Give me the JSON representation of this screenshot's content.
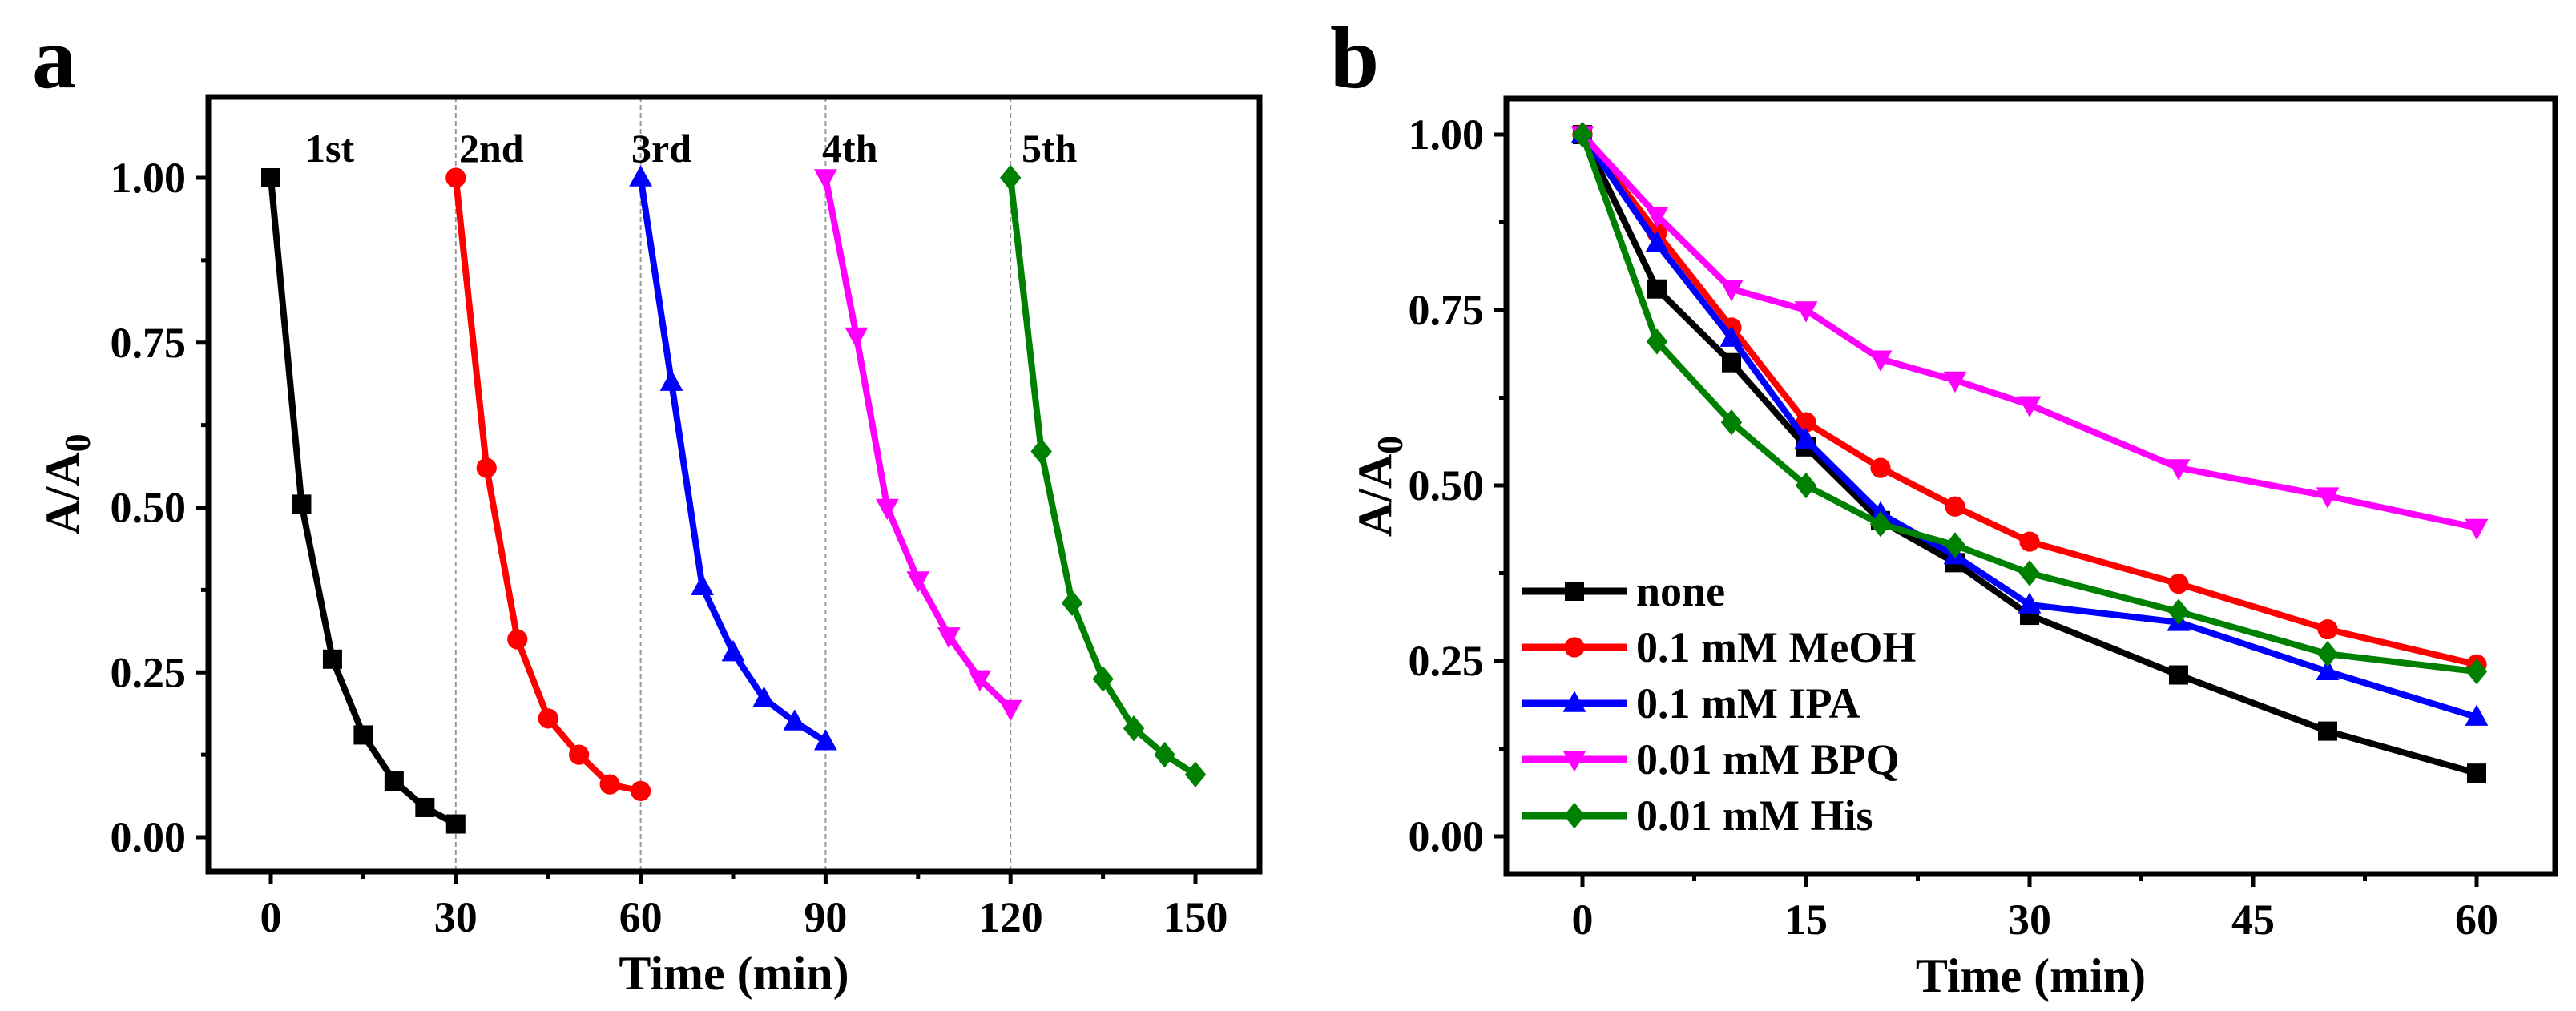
{
  "chart_data": [
    {
      "panel_label": "a",
      "type": "line",
      "xlabel": "Time (min)",
      "ylabel": "A/A0",
      "ylabel_main": "A/A",
      "ylabel_sub": "0",
      "xlim": [
        -10,
        160
      ],
      "ylim": [
        -0.07,
        1.13
      ],
      "xticks": [
        0,
        30,
        60,
        90,
        120,
        150
      ],
      "xtick_labels": [
        "0",
        "30",
        "60",
        "90",
        "120",
        "150"
      ],
      "yticks": [
        0,
        0.25,
        0.5,
        0.75,
        1.0
      ],
      "ytick_labels": [
        "0.00",
        "0.25",
        "0.50",
        "0.75",
        "1.00"
      ],
      "vlines": [
        30,
        60,
        90,
        120
      ],
      "series": [
        {
          "name": "1st",
          "color": "#000000",
          "marker": "square",
          "x": [
            0,
            5,
            10,
            15,
            20,
            25,
            30
          ],
          "y": [
            1.0,
            0.505,
            0.27,
            0.155,
            0.085,
            0.045,
            0.02
          ]
        },
        {
          "name": "2nd",
          "color": "#ff0000",
          "marker": "circle",
          "x": [
            30,
            35,
            40,
            45,
            50,
            55,
            60
          ],
          "y": [
            1.0,
            0.56,
            0.3,
            0.18,
            0.125,
            0.08,
            0.07
          ]
        },
        {
          "name": "3rd",
          "color": "#0000ff",
          "marker": "triangle-up",
          "x": [
            60,
            65,
            70,
            75,
            80,
            85,
            90
          ],
          "y": [
            1.0,
            0.69,
            0.38,
            0.28,
            0.21,
            0.175,
            0.145
          ]
        },
        {
          "name": "4th",
          "color": "#ff00ff",
          "marker": "triangle-down",
          "x": [
            90,
            95,
            100,
            105,
            110,
            115,
            120
          ],
          "y": [
            1.0,
            0.76,
            0.5,
            0.39,
            0.305,
            0.24,
            0.195
          ]
        },
        {
          "name": "5th",
          "color": "#008000",
          "marker": "diamond",
          "x": [
            120,
            125,
            130,
            135,
            140,
            145,
            150
          ],
          "y": [
            1.0,
            0.585,
            0.355,
            0.24,
            0.165,
            0.125,
            0.095
          ]
        }
      ]
    },
    {
      "panel_label": "b",
      "type": "line",
      "xlabel": "Time (min)",
      "ylabel": "A/A0",
      "ylabel_main": "A/A",
      "ylabel_sub": "0",
      "xlim": [
        -5.5,
        65
      ],
      "ylim": [
        -0.1,
        1.07
      ],
      "xticks": [
        0,
        15,
        30,
        45,
        60
      ],
      "xtick_labels": [
        "0",
        "15",
        "30",
        "45",
        "60"
      ],
      "yticks": [
        0,
        0.25,
        0.5,
        0.75,
        1.0
      ],
      "ytick_labels": [
        "0.00",
        "0.25",
        "0.50",
        "0.75",
        "1.00"
      ],
      "legend_position": "bottom-left",
      "x": [
        0,
        5,
        10,
        15,
        20,
        25,
        30,
        40,
        50,
        60
      ],
      "series": [
        {
          "name": "none",
          "color": "#000000",
          "marker": "square",
          "y": [
            1.0,
            0.78,
            0.675,
            0.555,
            0.45,
            0.39,
            0.315,
            0.23,
            0.15,
            0.09
          ]
        },
        {
          "name": "0.1 mM MeOH",
          "color": "#ff0000",
          "marker": "circle",
          "y": [
            1.0,
            0.86,
            0.725,
            0.59,
            0.525,
            0.47,
            0.42,
            0.36,
            0.295,
            0.245
          ]
        },
        {
          "name": "0.1 mM IPA",
          "color": "#0000ff",
          "marker": "triangle-up",
          "y": [
            1.0,
            0.845,
            0.71,
            0.565,
            0.46,
            0.4,
            0.33,
            0.305,
            0.235,
            0.17
          ]
        },
        {
          "name": "0.01 mM BPQ",
          "color": "#ff00ff",
          "marker": "triangle-down",
          "y": [
            1.0,
            0.885,
            0.78,
            0.75,
            0.68,
            0.65,
            0.615,
            0.525,
            0.485,
            0.44
          ]
        },
        {
          "name": "0.01 mM His",
          "color": "#008000",
          "marker": "diamond",
          "y": [
            1.0,
            0.705,
            0.59,
            0.5,
            0.445,
            0.415,
            0.375,
            0.32,
            0.26,
            0.235
          ]
        }
      ]
    }
  ]
}
